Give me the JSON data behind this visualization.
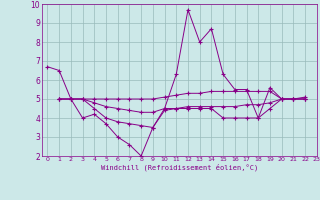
{
  "xlabel": "Windchill (Refroidissement éolien,°C)",
  "xlim": [
    -0.5,
    23
  ],
  "ylim": [
    2,
    10
  ],
  "xticks": [
    0,
    1,
    2,
    3,
    4,
    5,
    6,
    7,
    8,
    9,
    10,
    11,
    12,
    13,
    14,
    15,
    16,
    17,
    18,
    19,
    20,
    21,
    22,
    23
  ],
  "yticks": [
    2,
    3,
    4,
    5,
    6,
    7,
    8,
    9,
    10
  ],
  "bg_color": "#cce8e8",
  "line_color": "#880088",
  "grid_color": "#99bbbb",
  "lines": [
    {
      "x": [
        0,
        1,
        2,
        3,
        4,
        5,
        6,
        7,
        8,
        9,
        10,
        11,
        12,
        13,
        14,
        15,
        16,
        17,
        18,
        19,
        20,
        21,
        22
      ],
      "y": [
        6.7,
        6.5,
        5.0,
        4.0,
        4.2,
        3.7,
        3.0,
        2.6,
        2.0,
        3.5,
        4.5,
        6.3,
        9.7,
        8.0,
        8.7,
        6.3,
        5.5,
        5.5,
        4.0,
        5.6,
        5.0,
        5.0,
        5.1
      ]
    },
    {
      "x": [
        1,
        2,
        3,
        4,
        5,
        6,
        7,
        8,
        9,
        10,
        11,
        12,
        13,
        14,
        15,
        16,
        17,
        18,
        19,
        20,
        21,
        22
      ],
      "y": [
        5.0,
        5.0,
        5.0,
        5.0,
        5.0,
        5.0,
        5.0,
        5.0,
        5.0,
        5.1,
        5.2,
        5.3,
        5.3,
        5.4,
        5.4,
        5.4,
        5.4,
        5.4,
        5.4,
        5.0,
        5.0,
        5.0
      ]
    },
    {
      "x": [
        1,
        2,
        3,
        4,
        5,
        6,
        7,
        8,
        9,
        10,
        11,
        12,
        13,
        14,
        15,
        16,
        17,
        18,
        19,
        20,
        21,
        22
      ],
      "y": [
        5.0,
        5.0,
        5.0,
        4.8,
        4.6,
        4.5,
        4.4,
        4.3,
        4.3,
        4.5,
        4.5,
        4.6,
        4.6,
        4.6,
        4.6,
        4.6,
        4.7,
        4.7,
        4.8,
        5.0,
        5.0,
        5.0
      ]
    },
    {
      "x": [
        1,
        2,
        3,
        4,
        5,
        6,
        7,
        8,
        9,
        10,
        11,
        12,
        13,
        14,
        15,
        16,
        17,
        18,
        19,
        20,
        21,
        22
      ],
      "y": [
        5.0,
        5.0,
        5.0,
        4.5,
        4.0,
        3.8,
        3.7,
        3.6,
        3.5,
        4.4,
        4.5,
        4.5,
        4.5,
        4.5,
        4.0,
        4.0,
        4.0,
        4.0,
        4.5,
        5.0,
        5.0,
        5.0
      ]
    }
  ]
}
